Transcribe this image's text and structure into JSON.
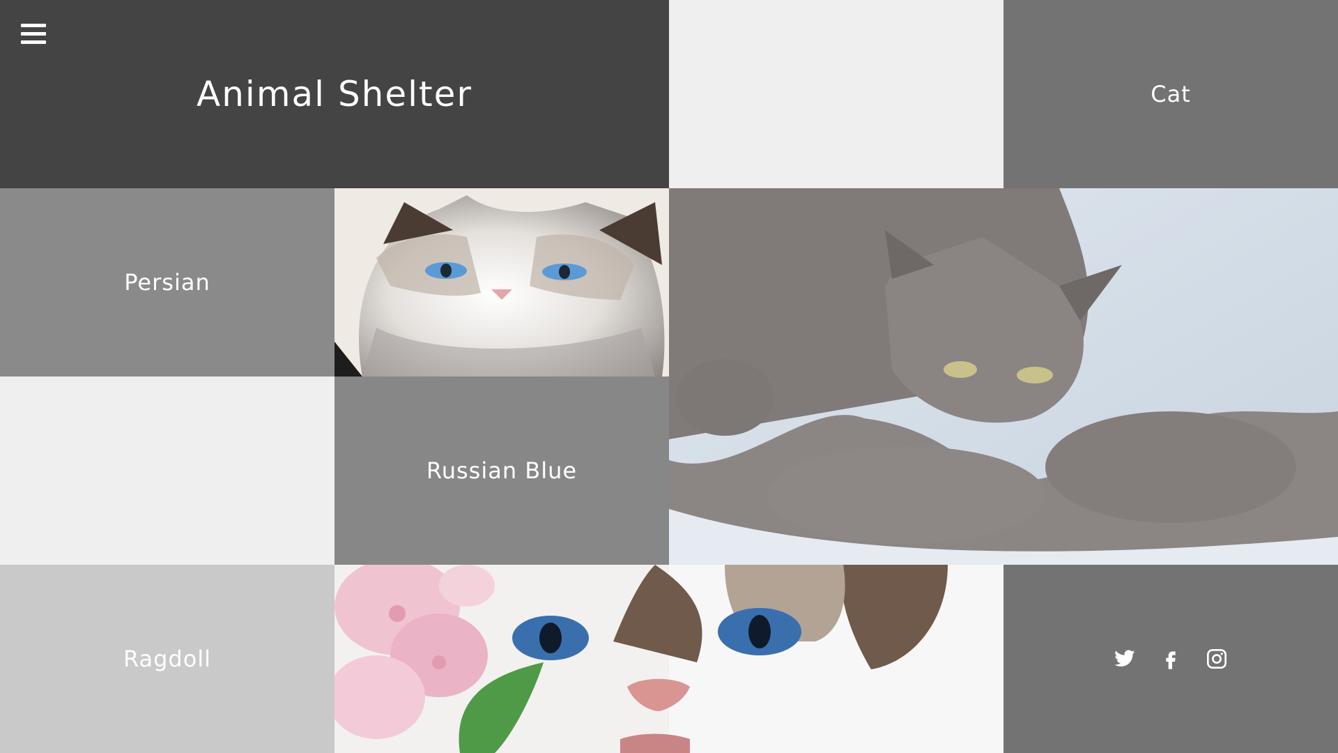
{
  "header": {
    "title": "Animal Shelter",
    "menu_icon": "hamburger-menu-icon"
  },
  "tiles": {
    "cat": "Cat",
    "persian": "Persian",
    "russian_blue": "Russian Blue",
    "ragdoll": "Ragdoll"
  },
  "photos": {
    "persian": "persian-cat-photo",
    "russian_blue": "russian-blue-cat-with-kittens-photo",
    "ragdoll": "ragdoll-cat-closeup-photo"
  },
  "social": {
    "icons": [
      "twitter-icon",
      "facebook-icon",
      "instagram-icon"
    ]
  },
  "colors": {
    "header_bg": "#444444",
    "cat_bg": "#737373",
    "persian_bg": "#8a8a8a",
    "russian_bg": "#878787",
    "ragdoll_bg": "#c9c9c9",
    "blank_bg": "#efefef",
    "text": "#ffffff"
  }
}
